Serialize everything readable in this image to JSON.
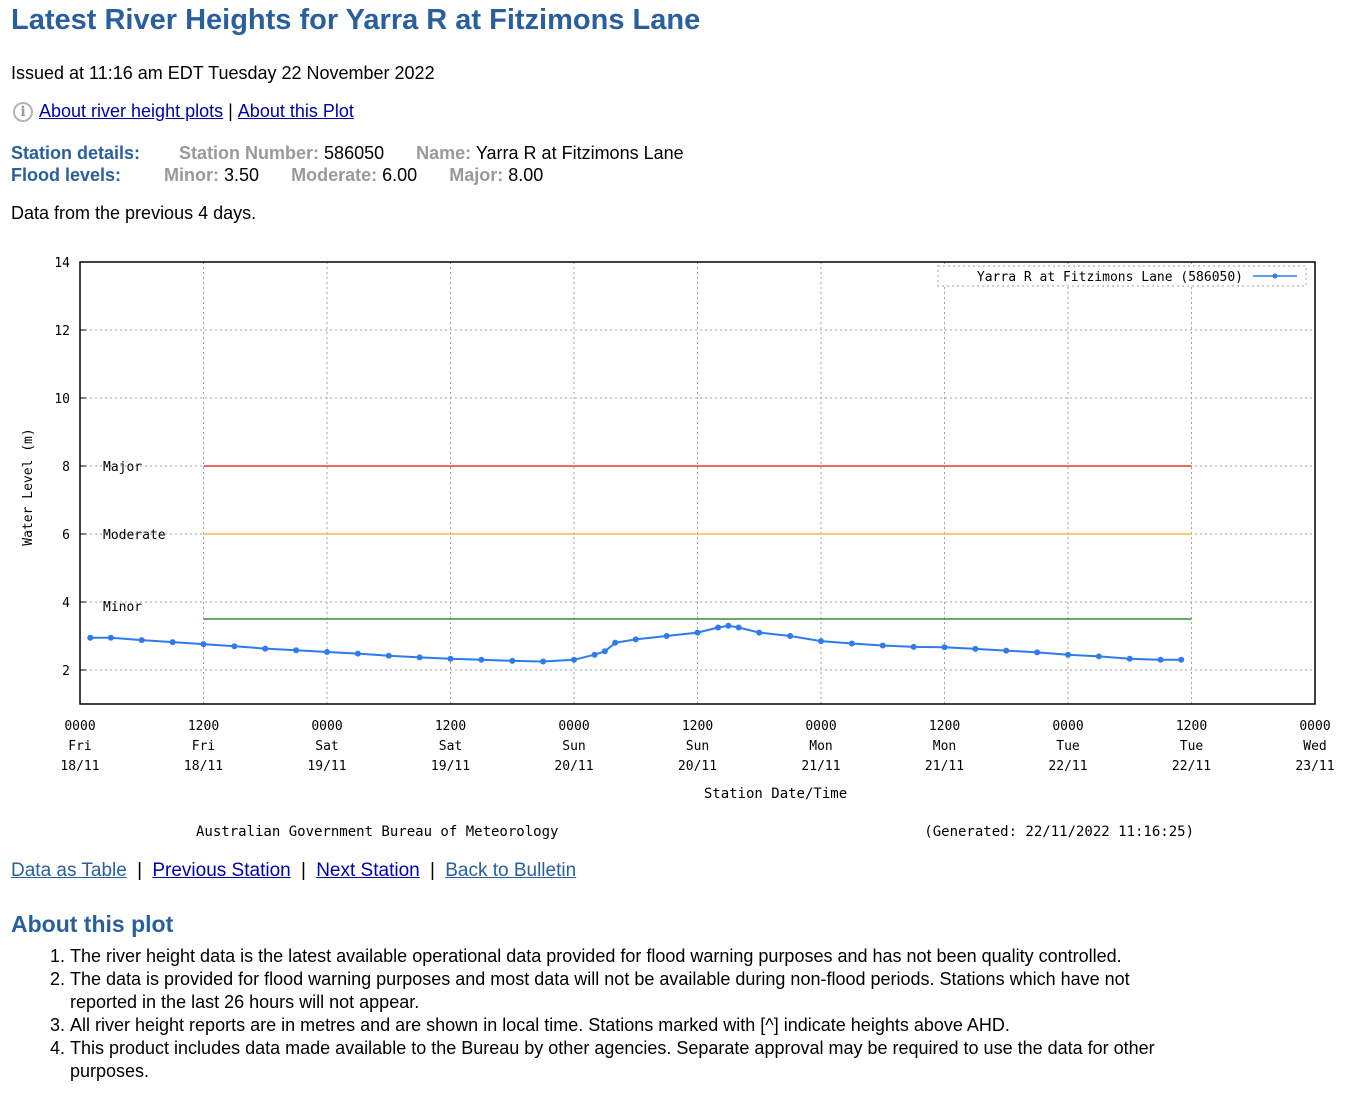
{
  "header": {
    "title": "Latest River Heights for Yarra R at Fitzimons Lane",
    "issued": "Issued at 11:16 am EDT Tuesday 22 November 2022"
  },
  "links_top": {
    "info_icon": "i",
    "about_river_height_plots": "About river height plots",
    "sep": "|",
    "about_this_plot": "About this Plot"
  },
  "station": {
    "label": "Station details:",
    "number_key": "Station Number:",
    "number_val": "586050",
    "name_key": "Name:",
    "name_val": "Yarra R at Fitzimons Lane"
  },
  "flood": {
    "label": "Flood levels:",
    "minor_key": "Minor:",
    "minor_val": "3.50",
    "moderate_key": "Moderate:",
    "moderate_val": "6.00",
    "major_key": "Major:",
    "major_val": "8.00"
  },
  "period_text": "Data from the previous 4 days.",
  "chart_data": {
    "type": "line",
    "ylabel": "Water Level (m)",
    "xlabel": "Station Date/Time",
    "ylim": [
      1,
      14
    ],
    "y_ticks": [
      2,
      4,
      6,
      8,
      10,
      12,
      14
    ],
    "x_range_hours": [
      0,
      120
    ],
    "x_ticks": [
      {
        "h": 0,
        "l1": "0000",
        "l2": "Fri",
        "l3": "18/11"
      },
      {
        "h": 12,
        "l1": "1200",
        "l2": "Fri",
        "l3": "18/11"
      },
      {
        "h": 24,
        "l1": "0000",
        "l2": "Sat",
        "l3": "19/11"
      },
      {
        "h": 36,
        "l1": "1200",
        "l2": "Sat",
        "l3": "19/11"
      },
      {
        "h": 48,
        "l1": "0000",
        "l2": "Sun",
        "l3": "20/11"
      },
      {
        "h": 60,
        "l1": "1200",
        "l2": "Sun",
        "l3": "20/11"
      },
      {
        "h": 72,
        "l1": "0000",
        "l2": "Mon",
        "l3": "21/11"
      },
      {
        "h": 84,
        "l1": "1200",
        "l2": "Mon",
        "l3": "21/11"
      },
      {
        "h": 96,
        "l1": "0000",
        "l2": "Tue",
        "l3": "22/11"
      },
      {
        "h": 108,
        "l1": "1200",
        "l2": "Tue",
        "l3": "22/11"
      },
      {
        "h": 120,
        "l1": "0000",
        "l2": "Wed",
        "l3": "23/11"
      }
    ],
    "flood_levels": [
      {
        "name": "Major",
        "value": 8.0,
        "color": "#e03a2f",
        "from_h": 12,
        "to_h": 108
      },
      {
        "name": "Moderate",
        "value": 6.0,
        "color": "#f5b942",
        "from_h": 12,
        "to_h": 108
      },
      {
        "name": "Minor",
        "value": 3.5,
        "color": "#3c8a3c",
        "from_h": 12,
        "to_h": 108
      }
    ],
    "series": [
      {
        "name": "Yarra R at Fitzimons Lane (586050)",
        "color": "#2e7bef",
        "x": [
          1,
          3,
          6,
          9,
          12,
          15,
          18,
          21,
          24,
          27,
          30,
          33,
          36,
          39,
          42,
          45,
          48,
          50,
          51,
          52,
          54,
          57,
          60,
          62,
          63,
          64,
          66,
          69,
          72,
          75,
          78,
          81,
          84,
          87,
          90,
          93,
          96,
          99,
          102,
          105,
          107
        ],
        "y": [
          2.95,
          2.95,
          2.88,
          2.82,
          2.76,
          2.7,
          2.63,
          2.58,
          2.53,
          2.48,
          2.42,
          2.37,
          2.33,
          2.3,
          2.27,
          2.25,
          2.3,
          2.45,
          2.55,
          2.8,
          2.9,
          3.0,
          3.1,
          3.25,
          3.3,
          3.25,
          3.1,
          3.0,
          2.85,
          2.78,
          2.72,
          2.68,
          2.67,
          2.62,
          2.57,
          2.52,
          2.45,
          2.4,
          2.33,
          2.3,
          2.3
        ]
      }
    ],
    "legend_position": "top-right",
    "footer_left": "Australian Government Bureau of Meteorology",
    "footer_right": "(Generated: 22/11/2022 11:16:25)"
  },
  "links_bottom": {
    "data_as_table": "Data as Table",
    "previous_station": "Previous Station",
    "next_station": "Next Station",
    "back_to_bulletin": "Back to Bulletin",
    "sep": "|"
  },
  "about": {
    "heading": "About this plot",
    "items": [
      "The river height data is the latest available operational data provided for flood warning purposes and has not been quality controlled.",
      "The data is provided for flood warning purposes and most data will not be available during non-flood periods. Stations which have not reported in the last 26 hours will not appear.",
      "All river height reports are in metres and are shown in local time. Stations marked with [^] indicate heights above AHD.",
      "This product includes data made available to the Bureau by other agencies. Separate approval may be required to use the data for other purposes."
    ]
  }
}
